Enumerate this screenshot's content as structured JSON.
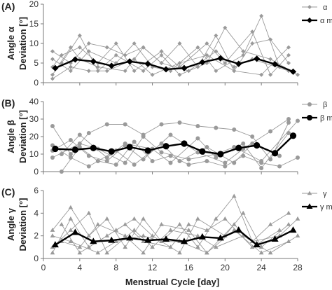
{
  "chart_data": [
    {
      "type": "line",
      "panel_label": "(A)",
      "ylabel_line1": "Angle α",
      "ylabel_line2": "Deviation [°]",
      "ylim": [
        0,
        20
      ],
      "yticks": [
        0,
        5,
        10,
        15,
        20
      ],
      "marker": "diamond",
      "legend": {
        "individual": "α",
        "mean": "α mean",
        "placement": "top-right"
      },
      "individual_series": [
        {
          "x": [
            1,
            3,
            5,
            7,
            9,
            11,
            13,
            15,
            17,
            19,
            21,
            23,
            25,
            27
          ],
          "values": [
            8,
            5,
            10,
            9,
            7,
            9,
            5,
            10,
            4,
            12,
            3,
            10,
            11,
            5
          ]
        },
        {
          "x": [
            1,
            3,
            5,
            8,
            10,
            12,
            14,
            17,
            19,
            22,
            24,
            26
          ],
          "values": [
            6,
            3,
            8,
            5,
            10,
            4,
            3,
            9,
            3,
            7,
            17,
            4
          ]
        },
        {
          "x": [
            1,
            2,
            4,
            6,
            8,
            10,
            13,
            15,
            18,
            20,
            23,
            25,
            27
          ],
          "values": [
            4,
            7,
            9,
            5,
            10,
            3,
            8,
            4,
            10,
            5,
            13,
            2,
            7
          ]
        },
        {
          "x": [
            1,
            3,
            4,
            6,
            9,
            11,
            13,
            16,
            19,
            21,
            23,
            27
          ],
          "values": [
            2,
            9,
            6,
            4,
            3,
            9,
            5,
            3,
            8,
            4,
            6,
            3
          ]
        },
        {
          "x": [
            2,
            4,
            6,
            8,
            11,
            13,
            15,
            18,
            20,
            22,
            25,
            28
          ],
          "values": [
            5,
            12,
            3,
            7,
            3,
            7,
            2,
            5,
            14,
            8,
            6,
            2
          ]
        },
        {
          "x": [
            1,
            3,
            5,
            7,
            10,
            12,
            15,
            18,
            21,
            24,
            27
          ],
          "values": [
            1,
            4,
            3,
            3,
            6,
            2,
            5,
            7,
            3,
            2,
            9
          ]
        }
      ],
      "mean_series": {
        "x": [
          1.3,
          3.5,
          5.5,
          7.5,
          9.5,
          11.5,
          13.5,
          15.5,
          17.5,
          19.5,
          21.5,
          23.5,
          25.5,
          27.5
        ],
        "values": [
          3.7,
          5.9,
          5.4,
          4.3,
          5.4,
          4.8,
          3.4,
          3.7,
          5.2,
          6.2,
          4.8,
          6.1,
          4.7,
          2.8
        ]
      }
    },
    {
      "type": "line",
      "panel_label": "(B)",
      "ylabel_line1": "Angle β",
      "ylabel_line2": "Deviation [°]",
      "ylim": [
        0,
        40
      ],
      "yticks": [
        0,
        10,
        20,
        30,
        40
      ],
      "marker": "circle",
      "legend": {
        "individual": "β",
        "mean": "β mean",
        "placement": "top-right"
      },
      "individual_series": [
        {
          "x": [
            1,
            3,
            5,
            7,
            9,
            11,
            13,
            15,
            17,
            19,
            21,
            23,
            25,
            27
          ],
          "values": [
            26,
            10,
            22,
            27,
            27,
            21,
            27,
            28,
            26,
            25,
            24,
            20,
            7,
            28
          ]
        },
        {
          "x": [
            1,
            3,
            5,
            7,
            9,
            11,
            14,
            17,
            20,
            22,
            25,
            27
          ],
          "values": [
            12,
            18,
            9,
            6,
            15,
            7,
            21,
            11,
            5,
            13,
            23,
            30
          ]
        },
        {
          "x": [
            2,
            4,
            6,
            8,
            10,
            12,
            14,
            16,
            18,
            20,
            22,
            24,
            26,
            28
          ],
          "values": [
            0,
            14,
            6,
            4,
            17,
            6,
            9,
            4,
            6,
            3,
            9,
            5,
            3,
            8
          ]
        },
        {
          "x": [
            1,
            3,
            5,
            8,
            10,
            13,
            15,
            18,
            21,
            23,
            26
          ],
          "values": [
            15,
            8,
            3,
            12,
            4,
            16,
            6,
            14,
            5,
            16,
            9
          ]
        },
        {
          "x": [
            2,
            4,
            7,
            9,
            12,
            14,
            17,
            19,
            22,
            24,
            27
          ],
          "values": [
            10,
            21,
            8,
            16,
            13,
            5,
            19,
            8,
            16,
            2,
            22
          ]
        },
        {
          "x": [
            1,
            4,
            6,
            9,
            11,
            13,
            16,
            19,
            21,
            24,
            28
          ],
          "values": [
            8,
            16,
            13,
            5,
            20,
            11,
            7,
            10,
            14,
            6,
            29
          ]
        }
      ],
      "mean_series": {
        "x": [
          1.3,
          3.5,
          5.5,
          7.5,
          9.5,
          11.5,
          13.5,
          15.5,
          17.5,
          19.5,
          21.5,
          23.5,
          25.5,
          27.5
        ],
        "values": [
          13,
          12.5,
          13.5,
          11.5,
          14,
          12,
          14.5,
          16,
          11.5,
          10,
          13.5,
          15,
          10.5,
          20.5
        ]
      }
    },
    {
      "type": "line",
      "panel_label": "(C)",
      "ylabel_line1": "Angle γ",
      "ylabel_line2": "Deviation [°]",
      "ylim": [
        0,
        6
      ],
      "yticks": [
        0,
        2,
        4,
        6
      ],
      "marker": "triangle",
      "legend": {
        "individual": "γ",
        "mean": "γ mean",
        "placement": "top-right"
      },
      "individual_series": [
        {
          "x": [
            1,
            3,
            5,
            7,
            9,
            11,
            13,
            15,
            17,
            19,
            21,
            23,
            25,
            27
          ],
          "values": [
            2.5,
            4.5,
            2,
            3.5,
            1,
            3.5,
            1.5,
            3,
            1,
            3.5,
            5.5,
            1.5,
            3,
            4
          ]
        },
        {
          "x": [
            1,
            3,
            5,
            8,
            10,
            12,
            15,
            17,
            20,
            22,
            24,
            27
          ],
          "values": [
            0.5,
            3.5,
            1,
            2.5,
            3.5,
            2,
            0.5,
            3.5,
            2,
            4,
            1,
            3
          ]
        },
        {
          "x": [
            2,
            4,
            6,
            9,
            11,
            13,
            16,
            18,
            21,
            23,
            26,
            28
          ],
          "values": [
            1.5,
            1,
            3,
            2,
            0.5,
            3,
            2.5,
            0.5,
            3,
            1.5,
            2,
            3.5
          ]
        },
        {
          "x": [
            1,
            3,
            5,
            7,
            10,
            12,
            14,
            17,
            19,
            22,
            25,
            28
          ],
          "values": [
            1,
            2.5,
            4,
            0.5,
            2.5,
            1,
            2.5,
            2,
            1,
            2,
            0.5,
            2
          ]
        },
        {
          "x": [
            2,
            4,
            7,
            9,
            11,
            14,
            16,
            18,
            20,
            23,
            26
          ],
          "values": [
            3,
            0.5,
            2,
            3,
            1.5,
            1,
            3,
            2.5,
            3.5,
            1,
            2.5
          ]
        },
        {
          "x": [
            1,
            3,
            6,
            8,
            11,
            13,
            15,
            18,
            21,
            24,
            27
          ],
          "values": [
            2,
            1.5,
            0.5,
            1.5,
            2,
            1.5,
            1.5,
            0.5,
            2.5,
            0.5,
            1.5
          ]
        }
      ],
      "mean_series": {
        "x": [
          1.3,
          3.5,
          5.5,
          7.5,
          9.5,
          11.5,
          13.5,
          15.5,
          17.5,
          19.5,
          21.5,
          23.5,
          25.5,
          27.5
        ],
        "values": [
          1.2,
          2.3,
          1.5,
          1.6,
          1.8,
          1.6,
          1.7,
          1.5,
          1.9,
          1.8,
          2.5,
          1.2,
          1.7,
          2.5
        ]
      }
    }
  ],
  "x_axis": {
    "label": "Menstrual Cycle [day]",
    "xlim": [
      0,
      28
    ],
    "ticks": [
      0,
      4,
      8,
      12,
      16,
      20,
      24,
      28
    ]
  },
  "colors": {
    "individual": "#9a9a9a",
    "mean": "#000000",
    "axis": "#7a7a7a"
  }
}
